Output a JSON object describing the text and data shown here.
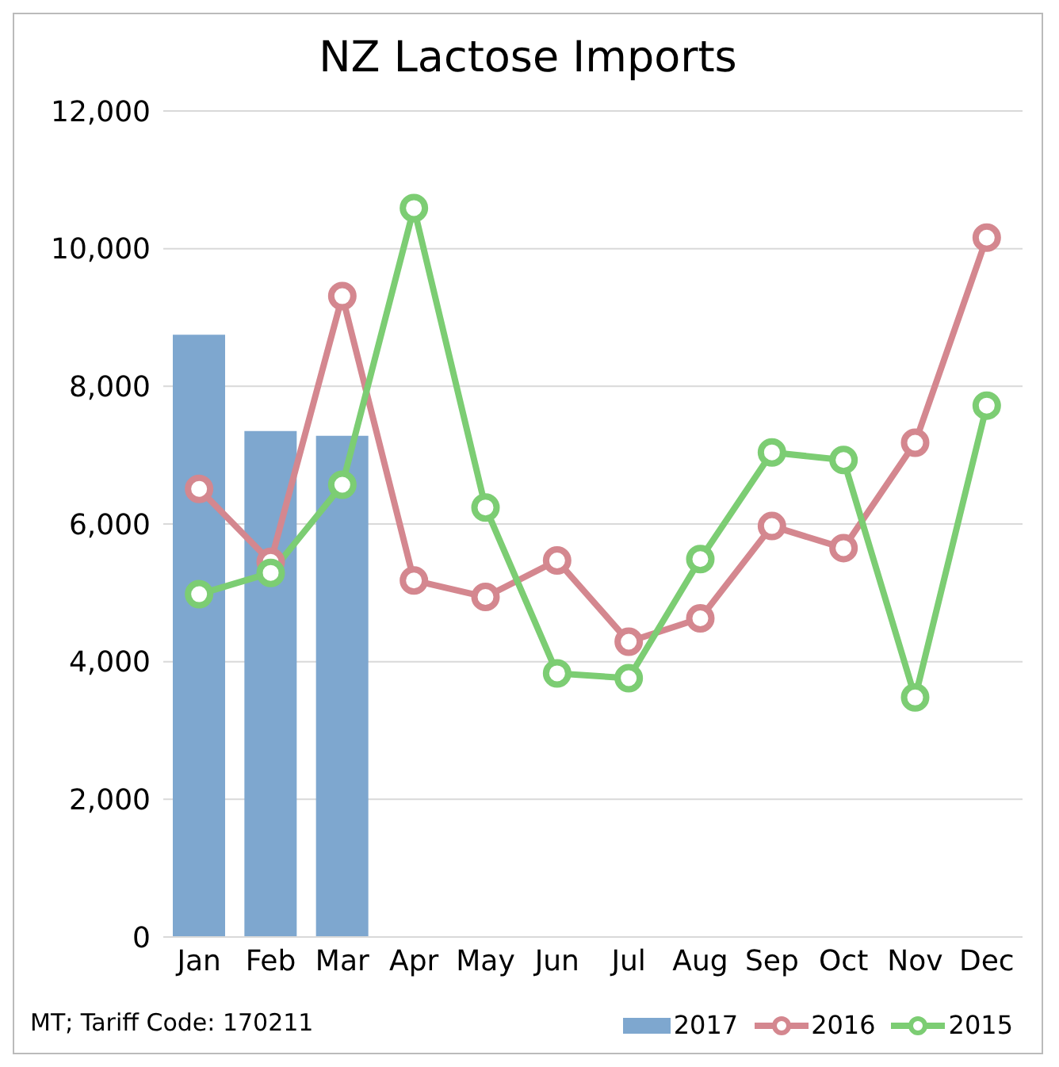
{
  "chart_data": {
    "type": "line",
    "title": "NZ Lactose Imports",
    "categories": [
      "Jan",
      "Feb",
      "Mar",
      "Apr",
      "May",
      "Jun",
      "Jul",
      "Aug",
      "Sep",
      "Oct",
      "Nov",
      "Dec"
    ],
    "series": [
      {
        "name": "2017",
        "type": "bar",
        "color": "#7ea7cf",
        "values": [
          8750,
          7350,
          7280,
          null,
          null,
          null,
          null,
          null,
          null,
          null,
          null,
          null
        ]
      },
      {
        "name": "2016",
        "color": "#d4878f",
        "values": [
          6510,
          5450,
          9310,
          5180,
          4940,
          5470,
          4290,
          4630,
          5970,
          5650,
          7180,
          10160
        ]
      },
      {
        "name": "2015",
        "color": "#7ccd73",
        "values": [
          4980,
          5290,
          6570,
          10590,
          6240,
          3830,
          3760,
          5490,
          7040,
          6930,
          3480,
          7720
        ]
      }
    ],
    "ylim": [
      0,
      12000
    ],
    "yticks": [
      0,
      {
        "value": 2000,
        "label": "2,000"
      },
      {
        "value": 4000,
        "label": "4,000"
      },
      {
        "value": 6000,
        "label": "6,000"
      },
      {
        "value": 8000,
        "label": "8,000"
      },
      {
        "value": 10000,
        "label": "10,000"
      },
      {
        "value": 12000,
        "label": "12,000"
      }
    ],
    "grid": "y",
    "legend": "bottom right",
    "marker": "circle",
    "line_style": "solid",
    "annotations": [
      "MT; Tariff Code: 170211"
    ]
  }
}
